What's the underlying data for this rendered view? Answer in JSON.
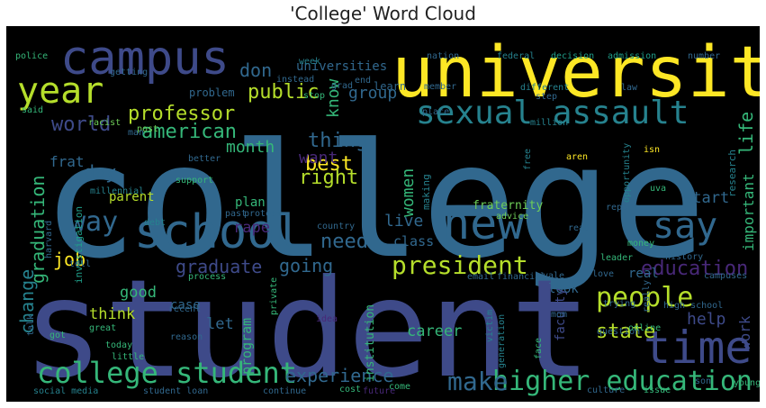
{
  "title": "'College' Word Cloud",
  "chart_data": {
    "type": "wordcloud",
    "title": "'College' Word Cloud",
    "background": "#000000",
    "palette": [
      "#3e4a89",
      "#31688e",
      "#26828e",
      "#1f9e89",
      "#35b779",
      "#6ece58",
      "#b5de2b",
      "#fde725",
      "#482878"
    ],
    "words": [
      {
        "text": "college",
        "weight": 100,
        "color": "#31688e"
      },
      {
        "text": "student",
        "weight": 95,
        "color": "#3e4a89"
      },
      {
        "text": "university",
        "weight": 60,
        "color": "#fde725"
      },
      {
        "text": "campus",
        "weight": 40,
        "color": "#3e4a89"
      },
      {
        "text": "school",
        "weight": 40,
        "color": "#31688e"
      },
      {
        "text": "new",
        "weight": 35,
        "color": "#31688e"
      },
      {
        "text": "time",
        "weight": 35,
        "color": "#3e4a89"
      },
      {
        "text": "say",
        "weight": 30,
        "color": "#31688e"
      },
      {
        "text": "year",
        "weight": 32,
        "color": "#b5de2b"
      },
      {
        "text": "sexual assault",
        "weight": 28,
        "color": "#26828e"
      },
      {
        "text": "college student",
        "weight": 26,
        "color": "#35b779"
      },
      {
        "text": "higher education",
        "weight": 26,
        "color": "#35b779"
      },
      {
        "text": "people",
        "weight": 24,
        "color": "#b5de2b"
      },
      {
        "text": "president",
        "weight": 22,
        "color": "#b5de2b"
      },
      {
        "text": "way",
        "weight": 22,
        "color": "#31688e"
      },
      {
        "text": "make",
        "weight": 22,
        "color": "#31688e"
      },
      {
        "text": "professor",
        "weight": 18,
        "color": "#b5de2b"
      },
      {
        "text": "education",
        "weight": 18,
        "color": "#482878"
      },
      {
        "text": "public",
        "weight": 16,
        "color": "#b5de2b"
      },
      {
        "text": "american",
        "weight": 16,
        "color": "#35b779"
      },
      {
        "text": "world",
        "weight": 16,
        "color": "#3e4a89"
      },
      {
        "text": "thing",
        "weight": 16,
        "color": "#31688e"
      },
      {
        "text": "best",
        "weight": 16,
        "color": "#fde725"
      },
      {
        "text": "right",
        "weight": 16,
        "color": "#b5de2b"
      },
      {
        "text": "need",
        "weight": 16,
        "color": "#31688e"
      },
      {
        "text": "graduation",
        "weight": 16,
        "color": "#35b779"
      },
      {
        "text": "graduate",
        "weight": 16,
        "color": "#3e4a89"
      },
      {
        "text": "going",
        "weight": 16,
        "color": "#31688e"
      },
      {
        "text": "experience",
        "weight": 16,
        "color": "#31688e"
      },
      {
        "text": "state",
        "weight": 16,
        "color": "#b5de2b"
      },
      {
        "text": "job",
        "weight": 15,
        "color": "#fde725"
      },
      {
        "text": "change",
        "weight": 15,
        "color": "#26828e"
      },
      {
        "text": "life",
        "weight": 15,
        "color": "#35b779"
      },
      {
        "text": "know",
        "weight": 14,
        "color": "#35b779"
      },
      {
        "text": "women",
        "weight": 14,
        "color": "#35b779"
      },
      {
        "text": "want",
        "weight": 14,
        "color": "#482878"
      },
      {
        "text": "live",
        "weight": 14,
        "color": "#31688e"
      },
      {
        "text": "day",
        "weight": 14,
        "color": "#31688e"
      },
      {
        "text": "don",
        "weight": 14,
        "color": "#31688e"
      },
      {
        "text": "important",
        "weight": 13,
        "color": "#35b779"
      },
      {
        "text": "month",
        "weight": 13,
        "color": "#35b779"
      },
      {
        "text": "help",
        "weight": 13,
        "color": "#3e4a89"
      },
      {
        "text": "think",
        "weight": 13,
        "color": "#b5de2b"
      },
      {
        "text": "good",
        "weight": 13,
        "color": "#35b779"
      },
      {
        "text": "career",
        "weight": 12,
        "color": "#35b779"
      },
      {
        "text": "start",
        "weight": 12,
        "color": "#31688e"
      },
      {
        "text": "rape",
        "weight": 12,
        "color": "#482878"
      },
      {
        "text": "group",
        "weight": 12,
        "color": "#31688e"
      },
      {
        "text": "frat",
        "weight": 12,
        "color": "#31688e"
      },
      {
        "text": "parent",
        "weight": 11,
        "color": "#b5de2b"
      },
      {
        "text": "let",
        "weight": 11,
        "color": "#31688e"
      },
      {
        "text": "program",
        "weight": 11,
        "color": "#35b779"
      },
      {
        "text": "work",
        "weight": 11,
        "color": "#3e4a89"
      },
      {
        "text": "class",
        "weight": 11,
        "color": "#31688e"
      },
      {
        "text": "fraternity",
        "weight": 10,
        "color": "#6ece58"
      },
      {
        "text": "universities",
        "weight": 10,
        "color": "#31688e"
      },
      {
        "text": "plan",
        "weight": 10,
        "color": "#35b779"
      },
      {
        "text": "real",
        "weight": 10,
        "color": "#31688e"
      },
      {
        "text": "look",
        "weight": 9,
        "color": "#31688e"
      },
      {
        "text": "case",
        "weight": 9,
        "color": "#31688e"
      },
      {
        "text": "faculty",
        "weight": 9,
        "color": "#3e4a89"
      },
      {
        "text": "institution",
        "weight": 9,
        "color": "#35b779"
      },
      {
        "text": "problem",
        "weight": 8,
        "color": "#31688e"
      },
      {
        "text": "learn",
        "weight": 8,
        "color": "#31688e"
      },
      {
        "text": "investigation",
        "weight": 8,
        "color": "#1f9e89"
      },
      {
        "text": "research",
        "weight": 8,
        "color": "#26828e"
      },
      {
        "text": "making",
        "weight": 8,
        "color": "#26828e"
      },
      {
        "text": "social media",
        "weight": 8,
        "color": "#26828e"
      },
      {
        "text": "student loan",
        "weight": 8,
        "color": "#31688e"
      },
      {
        "text": "high school",
        "weight": 7,
        "color": "#31688e"
      },
      {
        "text": "federal",
        "weight": 7,
        "color": "#26828e"
      },
      {
        "text": "decision",
        "weight": 7,
        "color": "#1f9e89"
      },
      {
        "text": "admission",
        "weight": 7,
        "color": "#1f9e89"
      },
      {
        "text": "number",
        "weight": 7,
        "color": "#31688e"
      },
      {
        "text": "nation",
        "weight": 7,
        "color": "#31688e"
      },
      {
        "text": "police",
        "weight": 7,
        "color": "#35b779"
      },
      {
        "text": "said",
        "weight": 7,
        "color": "#35b779"
      },
      {
        "text": "different",
        "weight": 7,
        "color": "#26828e"
      },
      {
        "text": "law",
        "weight": 7,
        "color": "#31688e"
      },
      {
        "text": "million",
        "weight": 7,
        "color": "#26828e"
      },
      {
        "text": "racist",
        "weight": 7,
        "color": "#6ece58"
      },
      {
        "text": "post",
        "weight": 7,
        "color": "#6ece58"
      },
      {
        "text": "step",
        "weight": 7,
        "color": "#31688e"
      },
      {
        "text": "stop",
        "weight": 7,
        "color": "#35b779"
      },
      {
        "text": "end",
        "weight": 7,
        "color": "#31688e"
      },
      {
        "text": "grad",
        "weight": 7,
        "color": "#31688e"
      },
      {
        "text": "week",
        "weight": 7,
        "color": "#26828e"
      },
      {
        "text": "getting",
        "weight": 7,
        "color": "#31688e"
      },
      {
        "text": "instead",
        "weight": 7,
        "color": "#31688e"
      },
      {
        "text": "aren",
        "weight": 7,
        "color": "#fde725"
      },
      {
        "text": "isn",
        "weight": 7,
        "color": "#fde725"
      },
      {
        "text": "free",
        "weight": 7,
        "color": "#26828e"
      },
      {
        "text": "opportunity",
        "weight": 7,
        "color": "#26828e"
      },
      {
        "text": "better",
        "weight": 7,
        "color": "#31688e"
      },
      {
        "text": "support",
        "weight": 7,
        "color": "#35b779"
      },
      {
        "text": "millennial",
        "weight": 7,
        "color": "#26828e"
      },
      {
        "text": "protest",
        "weight": 7,
        "color": "#31688e"
      },
      {
        "text": "past",
        "weight": 7,
        "color": "#31688e"
      },
      {
        "text": "advice",
        "weight": 7,
        "color": "#6ece58"
      },
      {
        "text": "report",
        "weight": 7,
        "color": "#31688e"
      },
      {
        "text": "uva",
        "weight": 7,
        "color": "#35b779"
      },
      {
        "text": "read",
        "weight": 7,
        "color": "#31688e"
      },
      {
        "text": "money",
        "weight": 7,
        "color": "#35b779"
      },
      {
        "text": "country",
        "weight": 7,
        "color": "#31688e"
      },
      {
        "text": "debt",
        "weight": 7,
        "color": "#26828e"
      },
      {
        "text": "harvard",
        "weight": 7,
        "color": "#31688e"
      },
      {
        "text": "history",
        "weight": 7,
        "color": "#31688e"
      },
      {
        "text": "leader",
        "weight": 7,
        "color": "#35b779"
      },
      {
        "text": "email",
        "weight": 7,
        "color": "#31688e"
      },
      {
        "text": "financial",
        "weight": 7,
        "color": "#31688e"
      },
      {
        "text": "process",
        "weight": 7,
        "color": "#35b779"
      },
      {
        "text": "private",
        "weight": 7,
        "color": "#35b779"
      },
      {
        "text": "yale",
        "weight": 7,
        "color": "#31688e"
      },
      {
        "text": "love",
        "weight": 7,
        "color": "#31688e"
      },
      {
        "text": "campuses",
        "weight": 7,
        "color": "#31688e"
      },
      {
        "text": "trying",
        "weight": 7,
        "color": "#31688e"
      },
      {
        "text": "great",
        "weight": 7,
        "color": "#35b779"
      },
      {
        "text": "recent",
        "weight": 7,
        "color": "#31688e"
      },
      {
        "text": "talk",
        "weight": 7,
        "color": "#31688e"
      },
      {
        "text": "tell",
        "weight": 7,
        "color": "#31688e"
      },
      {
        "text": "got",
        "weight": 7,
        "color": "#35b779"
      },
      {
        "text": "today",
        "weight": 7,
        "color": "#35b779"
      },
      {
        "text": "little",
        "weight": 7,
        "color": "#35b779"
      },
      {
        "text": "reason",
        "weight": 7,
        "color": "#31688e"
      },
      {
        "text": "question",
        "weight": 7,
        "color": "#31688e"
      },
      {
        "text": "online",
        "weight": 7,
        "color": "#35b779"
      },
      {
        "text": "victim",
        "weight": 7,
        "color": "#26828e"
      },
      {
        "text": "generation",
        "weight": 7,
        "color": "#26828e"
      },
      {
        "text": "face",
        "weight": 7,
        "color": "#35b779"
      },
      {
        "text": "really",
        "weight": 7,
        "color": "#31688e"
      },
      {
        "text": "idea",
        "weight": 7,
        "color": "#482878"
      },
      {
        "text": "culture",
        "weight": 7,
        "color": "#31688e"
      },
      {
        "text": "issue",
        "weight": 7,
        "color": "#35b779"
      },
      {
        "text": "young",
        "weight": 7,
        "color": "#35b779"
      },
      {
        "text": "continue",
        "weight": 7,
        "color": "#31688e"
      },
      {
        "text": "cost",
        "weight": 7,
        "color": "#35b779"
      },
      {
        "text": "future",
        "weight": 7,
        "color": "#482878"
      },
      {
        "text": "come",
        "weight": 7,
        "color": "#35b779"
      },
      {
        "text": "member",
        "weight": 7,
        "color": "#31688e"
      },
      {
        "text": "place",
        "weight": 7,
        "color": "#31688e"
      },
      {
        "text": "man",
        "weight": 7,
        "color": "#31688e"
      },
      {
        "text": "mom",
        "weight": 7,
        "color": "#31688e"
      },
      {
        "text": "son",
        "weight": 7,
        "color": "#31688e"
      }
    ]
  }
}
